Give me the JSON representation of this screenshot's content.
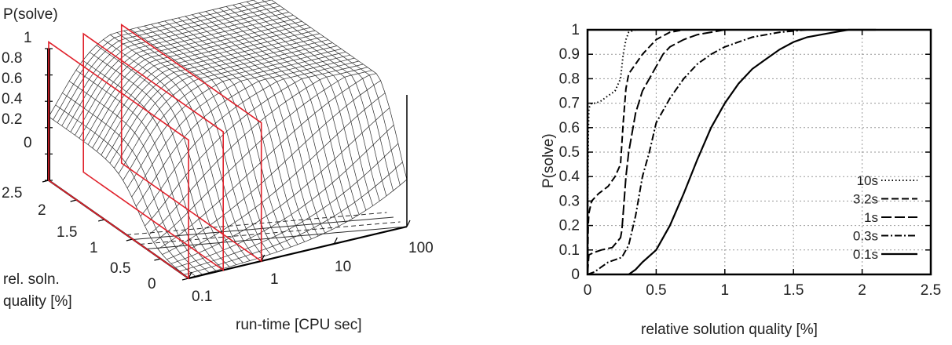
{
  "colors": {
    "line": "#000000",
    "frame": "#000000",
    "grid": "#9a9a9a",
    "plane": "#e0202a",
    "mesh": "#2a2a2a"
  },
  "chart_data": [
    {
      "type": "surface3d",
      "z_label": "P(solve)",
      "z_ticks": [
        "0",
        "0.2",
        "0.4",
        "0.6",
        "0.8",
        "1"
      ],
      "y_label_line1": "rel. soln.",
      "y_label_line2": "quality [%]",
      "y_ticks": [
        "0",
        "0.5",
        "1",
        "1.5",
        "2",
        "2.5"
      ],
      "x_label": "run-time [CPU sec]",
      "x_ticks": [
        "0.1",
        "1",
        "10",
        "100"
      ],
      "x_scale": "log",
      "xlim": [
        0.1,
        100
      ],
      "ylim": [
        0,
        2.5
      ],
      "zlim": [
        0,
        1
      ],
      "cross_sections_at_runtime": [
        0.1,
        0.3,
        1
      ]
    },
    {
      "type": "line",
      "xlabel": "relative solution quality [%]",
      "ylabel": "P(solve)",
      "xlim": [
        0,
        2.5
      ],
      "ylim": [
        0,
        1
      ],
      "x_ticks": [
        "0",
        "0.5",
        "1",
        "1.5",
        "2",
        "2.5"
      ],
      "y_ticks": [
        "0",
        "0.1",
        "0.2",
        "0.3",
        "0.4",
        "0.5",
        "0.6",
        "0.7",
        "0.8",
        "0.9",
        "1"
      ],
      "grid": true,
      "legend_position": "right",
      "series": [
        {
          "name": "10s",
          "dash": "dot",
          "x": [
            0,
            0.002,
            0.005,
            0.01,
            0.03,
            0.06,
            0.1,
            0.15,
            0.2,
            0.24,
            0.26,
            0.28,
            0.3,
            0.35,
            0.4,
            0.5
          ],
          "y": [
            0.02,
            0.3,
            0.55,
            0.68,
            0.7,
            0.7,
            0.71,
            0.73,
            0.75,
            0.8,
            0.9,
            0.96,
            0.99,
            1.0,
            1.0,
            1.0
          ]
        },
        {
          "name": "3.2s",
          "dash": "dash",
          "x": [
            0,
            0.005,
            0.01,
            0.03,
            0.08,
            0.15,
            0.2,
            0.24,
            0.26,
            0.28,
            0.3,
            0.35,
            0.4,
            0.5,
            0.6,
            0.7,
            0.8,
            0.9,
            1.0,
            1.1
          ],
          "y": [
            0.0,
            0.2,
            0.25,
            0.3,
            0.33,
            0.36,
            0.4,
            0.45,
            0.62,
            0.76,
            0.82,
            0.86,
            0.9,
            0.96,
            0.99,
            1.0,
            1.0,
            1.0,
            1.0,
            1.0
          ]
        },
        {
          "name": "1s",
          "dash": "longdash",
          "x": [
            0,
            0.01,
            0.05,
            0.1,
            0.18,
            0.24,
            0.25,
            0.26,
            0.28,
            0.3,
            0.35,
            0.4,
            0.45,
            0.5,
            0.55,
            0.6,
            0.7,
            0.8,
            0.9,
            1.0,
            1.1,
            1.2
          ],
          "y": [
            0.0,
            0.08,
            0.09,
            0.1,
            0.11,
            0.15,
            0.18,
            0.25,
            0.4,
            0.5,
            0.66,
            0.75,
            0.8,
            0.85,
            0.9,
            0.93,
            0.96,
            0.98,
            0.99,
            1.0,
            1.0,
            1.0
          ]
        },
        {
          "name": "0.3s",
          "dash": "dashdot",
          "x": [
            0,
            0.05,
            0.1,
            0.15,
            0.2,
            0.25,
            0.3,
            0.35,
            0.4,
            0.45,
            0.5,
            0.6,
            0.7,
            0.8,
            0.9,
            1.0,
            1.2,
            1.4,
            1.6,
            1.8,
            2.0
          ],
          "y": [
            0.0,
            0.01,
            0.03,
            0.05,
            0.06,
            0.07,
            0.12,
            0.24,
            0.4,
            0.5,
            0.62,
            0.72,
            0.8,
            0.86,
            0.9,
            0.93,
            0.97,
            0.99,
            1.0,
            1.0,
            1.0
          ]
        },
        {
          "name": "0.1s",
          "dash": "solid",
          "x": [
            0.3,
            0.35,
            0.4,
            0.5,
            0.6,
            0.7,
            0.8,
            0.9,
            1.0,
            1.1,
            1.2,
            1.3,
            1.4,
            1.5,
            1.6,
            1.7,
            1.8,
            1.9,
            2.0,
            2.1
          ],
          "y": [
            0.0,
            0.02,
            0.05,
            0.1,
            0.2,
            0.33,
            0.47,
            0.6,
            0.7,
            0.78,
            0.84,
            0.88,
            0.92,
            0.95,
            0.97,
            0.98,
            0.99,
            1.0,
            1.0,
            1.0
          ]
        }
      ]
    }
  ]
}
